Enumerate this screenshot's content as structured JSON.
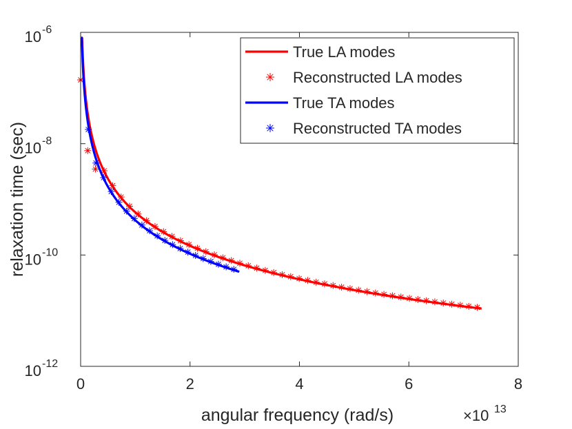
{
  "chart_data": {
    "type": "line",
    "title": "",
    "xlabel": "angular frequency (rad/s)",
    "ylabel": "relaxation time (sec)",
    "x_multiplier_base": "×10",
    "x_multiplier_exp": "13",
    "xlim": [
      0,
      8
    ],
    "ylim_log10": [
      -12,
      -6
    ],
    "x_ticks": [
      0,
      2,
      4,
      6,
      8
    ],
    "x_tick_labels": [
      "0",
      "2",
      "4",
      "6",
      "8"
    ],
    "y_ticks_log10": [
      -12,
      -10,
      -8,
      -6
    ],
    "y_tick_labels": [
      {
        "base": "10",
        "exp": "-12"
      },
      {
        "base": "10",
        "exp": "-10"
      },
      {
        "base": "10",
        "exp": "-8"
      },
      {
        "base": "10",
        "exp": "-6"
      }
    ],
    "legend_position": "top-right",
    "series": [
      {
        "name": "True LA modes",
        "style": "line",
        "color": "#ff0000",
        "law": "power",
        "tau_ref": 2.6e-10,
        "x_ref": 1.5,
        "exponent": -2.0,
        "x_start": 0.01,
        "x_end": 7.33,
        "tau_cap": 8e-07
      },
      {
        "name": "Reconstructed LA modes",
        "style": "marker",
        "marker": "*",
        "color": "#ff0000",
        "points": [
          [
            0.0,
            1.4e-07
          ],
          [
            0.13,
            7.5e-09
          ],
          [
            0.27,
            3.5e-09
          ]
        ],
        "spacing": 0.155,
        "x_start": 0.43,
        "x_end": 7.25
      },
      {
        "name": "True TA modes",
        "style": "line",
        "color": "#0000ff",
        "law": "power",
        "tau_ref": 1.87e-10,
        "x_ref": 1.5,
        "exponent": -2.0,
        "x_start": 0.01,
        "x_end": 2.9,
        "tau_cap": 8e-07
      },
      {
        "name": "Reconstructed TA modes",
        "style": "marker",
        "marker": "*",
        "color": "#0000ff",
        "points": [
          [
            0.14,
            1.8e-08
          ],
          [
            0.28,
            4.5e-09
          ]
        ],
        "spacing": 0.14,
        "x_start": 0.42,
        "x_end": 2.82
      }
    ]
  }
}
